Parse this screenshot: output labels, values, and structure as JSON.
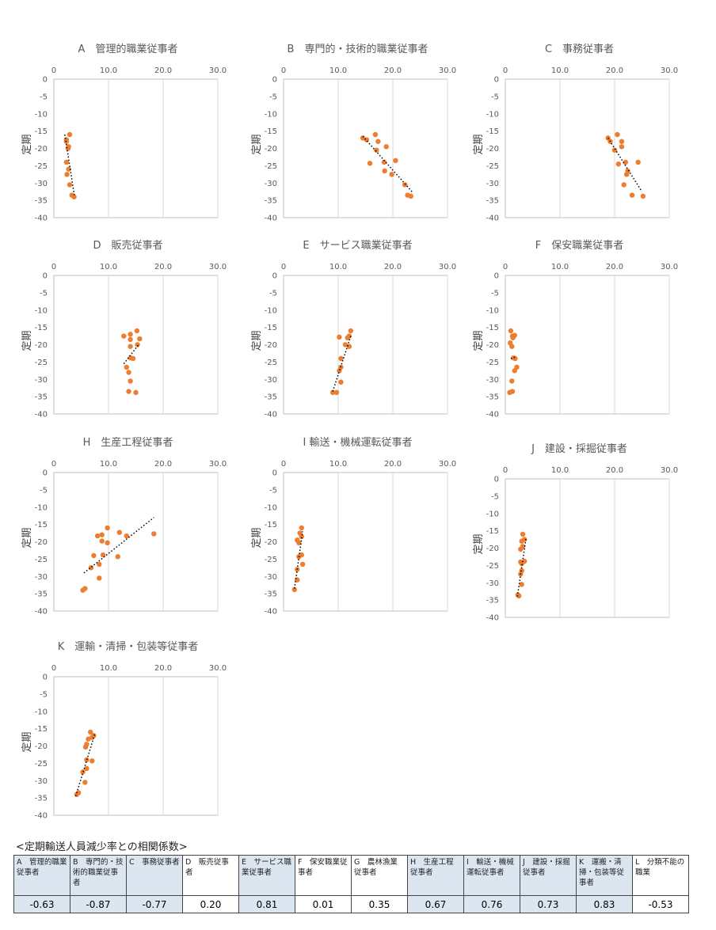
{
  "style": {
    "dot_color": "#ED7D31",
    "grid_color": "#D9D9D9",
    "trend_color": "#000000"
  },
  "axes": {
    "x_ticks": [
      "0",
      "10.0",
      "20.0",
      "30.0"
    ],
    "y_ticks": [
      "0",
      "-5",
      "-10",
      "-15",
      "-20",
      "-25",
      "-30",
      "-35",
      "-40"
    ],
    "ylabel": "定期",
    "xlim": [
      0,
      30
    ],
    "ylim": [
      -40,
      0
    ],
    "grid": "vertical gridlines at x ticks"
  },
  "chart_data": [
    {
      "id": "A",
      "title": "A　管理的職業従事者",
      "type": "scatter",
      "points": [
        [
          2.9,
          -16
        ],
        [
          2.3,
          -17.5
        ],
        [
          2.3,
          -18
        ],
        [
          2.6,
          -20
        ],
        [
          2.7,
          -19.5
        ],
        [
          2.3,
          -24
        ],
        [
          2.7,
          -26
        ],
        [
          2.4,
          -27.5
        ],
        [
          2.9,
          -30.5
        ],
        [
          3.3,
          -33.5
        ],
        [
          3.7,
          -34
        ]
      ],
      "trend": [
        [
          2.0,
          -16
        ],
        [
          3.8,
          -34
        ]
      ]
    },
    {
      "id": "B",
      "title": "B　専門的・技術的職業従事者",
      "type": "scatter",
      "points": [
        [
          14.5,
          -17
        ],
        [
          15.2,
          -17.5
        ],
        [
          16.8,
          -16
        ],
        [
          17.3,
          -18
        ],
        [
          17.0,
          -20.5
        ],
        [
          18.8,
          -19.5
        ],
        [
          15.8,
          -24.3
        ],
        [
          18.4,
          -24
        ],
        [
          18.5,
          -26.5
        ],
        [
          20.5,
          -23.5
        ],
        [
          19.8,
          -27.5
        ],
        [
          22.2,
          -30.5
        ],
        [
          22.7,
          -33.5
        ],
        [
          23.3,
          -33.8
        ]
      ],
      "trend": [
        [
          14.5,
          -16.5
        ],
        [
          23.5,
          -32.5
        ]
      ]
    },
    {
      "id": "C",
      "title": "C　事務従事者",
      "type": "scatter",
      "points": [
        [
          18.8,
          -17
        ],
        [
          19.2,
          -18
        ],
        [
          20.5,
          -16
        ],
        [
          21.3,
          -18
        ],
        [
          21.3,
          -19.5
        ],
        [
          20.0,
          -20.5
        ],
        [
          20.7,
          -24.5
        ],
        [
          22.0,
          -24
        ],
        [
          22.2,
          -27.5
        ],
        [
          22.4,
          -26.5
        ],
        [
          21.7,
          -30.5
        ],
        [
          24.3,
          -24
        ],
        [
          23.2,
          -33.5
        ],
        [
          25.2,
          -33.8
        ]
      ],
      "trend": [
        [
          18.8,
          -17
        ],
        [
          25.0,
          -32.5
        ]
      ]
    },
    {
      "id": "D",
      "title": "D　販売従事者",
      "type": "scatter",
      "points": [
        [
          12.8,
          -17.5
        ],
        [
          14.0,
          -17
        ],
        [
          15.2,
          -16
        ],
        [
          14.0,
          -18.5
        ],
        [
          15.7,
          -18.3
        ],
        [
          15.3,
          -20
        ],
        [
          14.0,
          -20.5
        ],
        [
          14.0,
          -23.8
        ],
        [
          14.5,
          -24
        ],
        [
          13.3,
          -26.5
        ],
        [
          13.7,
          -28
        ],
        [
          14.0,
          -30.5
        ],
        [
          13.7,
          -33.5
        ],
        [
          15.0,
          -33.8
        ]
      ],
      "trend": [
        [
          12.8,
          -25.5
        ],
        [
          15.5,
          -20
        ]
      ]
    },
    {
      "id": "E",
      "title": "E　サービス職業従事者",
      "type": "scatter",
      "points": [
        [
          12.3,
          -16
        ],
        [
          12.0,
          -17.5
        ],
        [
          10.2,
          -17.8
        ],
        [
          11.7,
          -18
        ],
        [
          11.3,
          -20
        ],
        [
          12.0,
          -20.5
        ],
        [
          10.5,
          -24
        ],
        [
          10.5,
          -26.5
        ],
        [
          10.2,
          -27.5
        ],
        [
          10.5,
          -30.8
        ],
        [
          9.0,
          -33.8
        ],
        [
          9.7,
          -33.8
        ]
      ],
      "trend": [
        [
          9.0,
          -33.5
        ],
        [
          12.3,
          -17.5
        ]
      ]
    },
    {
      "id": "F",
      "title": "F　保安職業従事者",
      "type": "scatter",
      "points": [
        [
          1.0,
          -16
        ],
        [
          1.3,
          -17.5
        ],
        [
          1.7,
          -17.3
        ],
        [
          1.4,
          -18
        ],
        [
          0.9,
          -19.5
        ],
        [
          1.2,
          -20.5
        ],
        [
          1.5,
          -23.8
        ],
        [
          1.8,
          -24
        ],
        [
          2.1,
          -26.5
        ],
        [
          1.7,
          -27.5
        ],
        [
          1.2,
          -30.5
        ],
        [
          1.3,
          -33.5
        ],
        [
          0.8,
          -33.8
        ]
      ],
      "trend": [
        [
          1.0,
          -24
        ],
        [
          2.0,
          -23.5
        ]
      ]
    },
    {
      "id": "H",
      "title": "H　生産工程従事者",
      "type": "scatter",
      "points": [
        [
          9.8,
          -16
        ],
        [
          12.0,
          -17.3
        ],
        [
          8.8,
          -18
        ],
        [
          8.0,
          -18.3
        ],
        [
          13.3,
          -18.3
        ],
        [
          18.3,
          -17.7
        ],
        [
          8.8,
          -19.8
        ],
        [
          9.8,
          -20.3
        ],
        [
          9.0,
          -23.8
        ],
        [
          7.3,
          -24
        ],
        [
          11.7,
          -24.3
        ],
        [
          8.3,
          -26.5
        ],
        [
          6.8,
          -27.5
        ],
        [
          8.3,
          -30.5
        ],
        [
          5.7,
          -33.5
        ],
        [
          5.3,
          -34
        ]
      ],
      "trend": [
        [
          5.5,
          -29
        ],
        [
          18.3,
          -13
        ]
      ]
    },
    {
      "id": "I",
      "title": "I 輸送・機械運転従事者",
      "type": "scatter",
      "points": [
        [
          3.3,
          -16
        ],
        [
          3.0,
          -17.5
        ],
        [
          3.3,
          -18.5
        ],
        [
          2.5,
          -19.5
        ],
        [
          2.8,
          -20.3
        ],
        [
          3.3,
          -23.8
        ],
        [
          2.8,
          -24.3
        ],
        [
          3.5,
          -26.5
        ],
        [
          2.5,
          -28
        ],
        [
          2.5,
          -31
        ],
        [
          2.0,
          -33.8
        ]
      ],
      "trend": [
        [
          2.0,
          -33.5
        ],
        [
          3.5,
          -17
        ]
      ]
    },
    {
      "id": "J",
      "title": "J　建設・採掘従事者",
      "type": "scatter",
      "points": [
        [
          3.2,
          -16
        ],
        [
          3.5,
          -17.5
        ],
        [
          3.0,
          -18
        ],
        [
          3.2,
          -19.5
        ],
        [
          2.8,
          -20.3
        ],
        [
          2.8,
          -24
        ],
        [
          3.5,
          -23.8
        ],
        [
          3.0,
          -24.5
        ],
        [
          3.0,
          -26.5
        ],
        [
          2.8,
          -27.5
        ],
        [
          3.0,
          -30.5
        ],
        [
          2.3,
          -33.5
        ],
        [
          2.5,
          -33.8
        ]
      ],
      "trend": [
        [
          2.2,
          -34
        ],
        [
          3.8,
          -17
        ]
      ]
    },
    {
      "id": "K",
      "title": "K　運輸・清掃・包装等従事者",
      "type": "scatter",
      "points": [
        [
          6.7,
          -16
        ],
        [
          7.3,
          -17
        ],
        [
          7.0,
          -17.5
        ],
        [
          6.3,
          -18
        ],
        [
          6.0,
          -19.5
        ],
        [
          5.8,
          -20.3
        ],
        [
          7.0,
          -24.3
        ],
        [
          6.0,
          -24
        ],
        [
          6.0,
          -26.5
        ],
        [
          5.3,
          -27.5
        ],
        [
          5.7,
          -30.5
        ],
        [
          4.5,
          -33.5
        ],
        [
          4.2,
          -34
        ]
      ],
      "trend": [
        [
          4.0,
          -34.5
        ],
        [
          7.5,
          -16.5
        ]
      ]
    }
  ],
  "table": {
    "caption": "<定期輸送人員減少率との相関係数>",
    "headers": [
      "A　管理的職業従事者",
      "B　専門的・技術的職業従事者",
      "C　事務従事者",
      "D　販売従事者",
      "E　サービス職業従事者",
      "F　保安職業従事者",
      "G　農林漁業従事者",
      "H　生産工程従事者",
      "I　輸送・機械運転従事者",
      "J　建設・採掘従事者",
      "K　運搬・清掃・包装等従事者",
      "L　分類不能の職業"
    ],
    "values": [
      "-0.63",
      "-0.87",
      "-0.77",
      "0.20",
      "0.81",
      "0.01",
      "0.35",
      "0.67",
      "0.76",
      "0.73",
      "0.83",
      "-0.53"
    ],
    "shaded": [
      true,
      true,
      true,
      false,
      true,
      false,
      false,
      true,
      true,
      true,
      true,
      false
    ]
  }
}
